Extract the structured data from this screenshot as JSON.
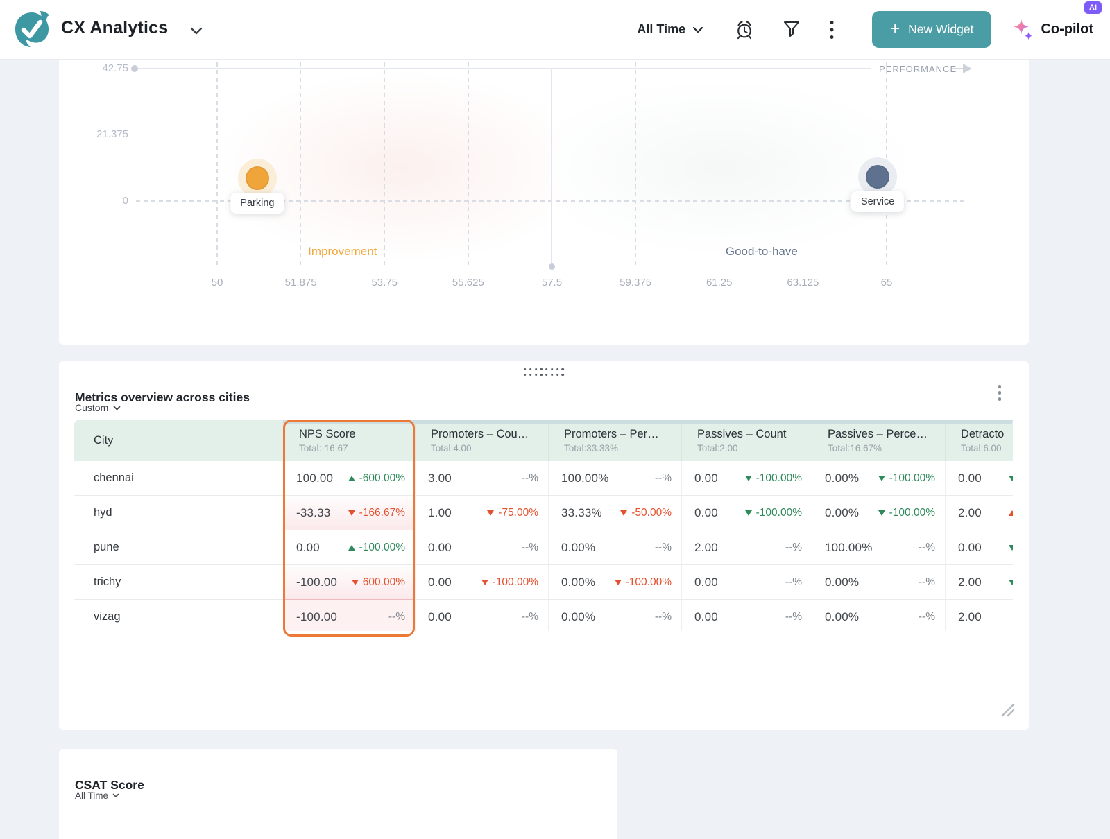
{
  "header": {
    "app_title": "CX Analytics",
    "time_filter": "All Time",
    "new_widget_label": "New Widget",
    "copilot_label": "Co-pilot",
    "ai_badge": "AI",
    "accent_teal": "#4a9da4",
    "accent_purple": "#7d5bf6"
  },
  "chart_data": {
    "type": "scatter",
    "title": "",
    "x_axis_label": "PERFORMANCE",
    "xlim": [
      50,
      65
    ],
    "xticks": [
      "50",
      "51.875",
      "53.75",
      "55.625",
      "57.5",
      "59.375",
      "61.25",
      "63.125",
      "65"
    ],
    "yticks": [
      "0",
      "21.375",
      "42.75"
    ],
    "ref_line_x": 57.5,
    "grid": "dashed",
    "legend": "none",
    "quadrant_labels": [
      {
        "text": "Improvement",
        "color": "#f2a83d",
        "x": 52.81,
        "y": -16.3
      },
      {
        "text": "Good-to-have",
        "color": "#68768f",
        "x": 62.2,
        "y": -16.3
      }
    ],
    "points": [
      {
        "label": "Parking",
        "x": 50.9,
        "y": 7.4,
        "color": "#f0a53a",
        "halo": "#fbeed8"
      },
      {
        "label": "Service",
        "x": 64.8,
        "y": 7.8,
        "color": "#5e7290",
        "halo": "#e9ecf1"
      }
    ]
  },
  "metrics_table": {
    "title": "Metrics overview across cities",
    "range_selector": "Custom",
    "highlight_color": "#ee7836",
    "columns": [
      {
        "label": "City",
        "total": ""
      },
      {
        "label": "NPS Score",
        "total": "Total:-16.67",
        "highlighted": true
      },
      {
        "label": "Promoters – Cou…",
        "total": "Total:4.00"
      },
      {
        "label": "Promoters – Per…",
        "total": "Total:33.33%"
      },
      {
        "label": "Passives – Count",
        "total": "Total:2.00"
      },
      {
        "label": "Passives – Perce…",
        "total": "Total:16.67%"
      },
      {
        "label": "Detracto",
        "total": "Total:6.00"
      }
    ],
    "rows": [
      {
        "city": "chennai",
        "cells": [
          {
            "value": "100.00",
            "change": "-600.00%",
            "dir": "up",
            "tone": "green"
          },
          {
            "value": "3.00",
            "change": "--%",
            "tone": "gray"
          },
          {
            "value": "100.00%",
            "change": "--%",
            "tone": "gray"
          },
          {
            "value": "0.00",
            "change": "-100.00%",
            "dir": "down",
            "tone": "green"
          },
          {
            "value": "0.00%",
            "change": "-100.00%",
            "dir": "down",
            "tone": "green"
          },
          {
            "value": "0.00",
            "change": "",
            "dir": "down",
            "tone": "green"
          }
        ]
      },
      {
        "city": "hyd",
        "cells": [
          {
            "value": "-33.33",
            "change": "-166.67%",
            "dir": "down",
            "tone": "red",
            "bg": "pinkGrad"
          },
          {
            "value": "1.00",
            "change": "-75.00%",
            "dir": "down",
            "tone": "red"
          },
          {
            "value": "33.33%",
            "change": "-50.00%",
            "dir": "down",
            "tone": "red"
          },
          {
            "value": "0.00",
            "change": "-100.00%",
            "dir": "down",
            "tone": "green"
          },
          {
            "value": "0.00%",
            "change": "-100.00%",
            "dir": "down",
            "tone": "green"
          },
          {
            "value": "2.00",
            "change": "",
            "dir": "up",
            "tone": "red"
          }
        ]
      },
      {
        "city": "pune",
        "cells": [
          {
            "value": "0.00",
            "change": "-100.00%",
            "dir": "up",
            "tone": "green"
          },
          {
            "value": "0.00",
            "change": "--%",
            "tone": "gray"
          },
          {
            "value": "0.00%",
            "change": "--%",
            "tone": "gray"
          },
          {
            "value": "2.00",
            "change": "--%",
            "tone": "gray"
          },
          {
            "value": "100.00%",
            "change": "--%",
            "tone": "gray"
          },
          {
            "value": "0.00",
            "change": "",
            "dir": "down",
            "tone": "green"
          }
        ]
      },
      {
        "city": "trichy",
        "cells": [
          {
            "value": "-100.00",
            "change": "600.00%",
            "dir": "down",
            "tone": "red",
            "bg": "pinkGrad"
          },
          {
            "value": "0.00",
            "change": "-100.00%",
            "dir": "down",
            "tone": "red"
          },
          {
            "value": "0.00%",
            "change": "-100.00%",
            "dir": "down",
            "tone": "red"
          },
          {
            "value": "0.00",
            "change": "--%",
            "tone": "gray"
          },
          {
            "value": "0.00%",
            "change": "--%",
            "tone": "gray"
          },
          {
            "value": "2.00",
            "change": "",
            "dir": "down",
            "tone": "green"
          }
        ]
      },
      {
        "city": "vizag",
        "cells": [
          {
            "value": "-100.00",
            "change": "--%",
            "tone": "gray",
            "bg": "pink"
          },
          {
            "value": "0.00",
            "change": "--%",
            "tone": "gray"
          },
          {
            "value": "0.00%",
            "change": "--%",
            "tone": "gray"
          },
          {
            "value": "0.00",
            "change": "--%",
            "tone": "gray"
          },
          {
            "value": "0.00%",
            "change": "--%",
            "tone": "gray"
          },
          {
            "value": "2.00",
            "change": ""
          }
        ]
      }
    ]
  },
  "csat": {
    "title": "CSAT Score",
    "time_filter": "All Time"
  }
}
